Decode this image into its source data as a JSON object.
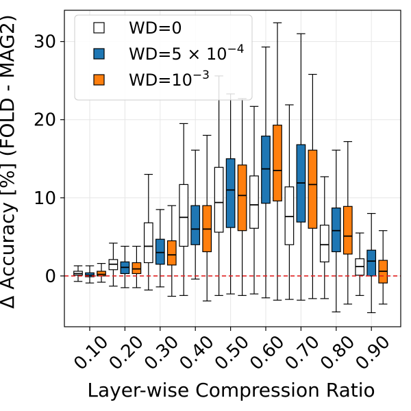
{
  "chart_data": {
    "type": "boxplot",
    "title": "",
    "xlabel": "Layer-wise Compression Ratio",
    "ylabel": "Δ Accuracy [%] (FOLD - MAG2)",
    "ylim": [
      -6.5,
      34
    ],
    "yticks": [
      0,
      10,
      20,
      30
    ],
    "grid": true,
    "reference_line": {
      "y": 0,
      "color": "#e02020",
      "style": "dashed"
    },
    "legend_position": "top-left",
    "categories": [
      "0.10",
      "0.20",
      "0.30",
      "0.40",
      "0.50",
      "0.60",
      "0.70",
      "0.80",
      "0.90"
    ],
    "series": [
      {
        "name": "WD=0",
        "legend_main": "WD=0",
        "legend_sup": "",
        "color": "#ffffff",
        "boxes": [
          {
            "whislo": -0.7,
            "q1": 0.1,
            "med": 0.3,
            "q3": 0.6,
            "whishi": 1.3
          },
          {
            "whislo": -1.3,
            "q1": 0.8,
            "med": 1.5,
            "q3": 2.1,
            "whishi": 4.2
          },
          {
            "whislo": -1.8,
            "q1": 1.7,
            "med": 3.8,
            "q3": 6.8,
            "whishi": 13.0
          },
          {
            "whislo": -2.5,
            "q1": 3.8,
            "med": 7.5,
            "q3": 11.7,
            "whishi": 19.5
          },
          {
            "whislo": -2.5,
            "q1": 5.6,
            "med": 9.4,
            "q3": 13.9,
            "whishi": 25.6
          },
          {
            "whislo": -2.3,
            "q1": 6.1,
            "med": 9.1,
            "q3": 12.8,
            "whishi": 21.7
          },
          {
            "whislo": -3.0,
            "q1": 4.0,
            "med": 7.6,
            "q3": 11.4,
            "whishi": 21.9
          },
          {
            "whislo": -2.9,
            "q1": 1.8,
            "med": 4.0,
            "q3": 6.5,
            "whishi": 12.7
          },
          {
            "whislo": -2.5,
            "q1": 0.1,
            "med": 1.2,
            "q3": 2.2,
            "whishi": 5.5
          }
        ]
      },
      {
        "name": "WD=5×10^-4",
        "legend_main": "WD=5 × 10",
        "legend_sup": "−4",
        "color": "#1f77b4",
        "boxes": [
          {
            "whislo": -0.9,
            "q1": -0.1,
            "med": 0.1,
            "q3": 0.4,
            "whishi": 1.3
          },
          {
            "whislo": -1.5,
            "q1": 0.3,
            "med": 1.1,
            "q3": 1.8,
            "whishi": 3.8
          },
          {
            "whislo": -1.4,
            "q1": 1.5,
            "med": 3.0,
            "q3": 4.7,
            "whishi": 8.5
          },
          {
            "whislo": -0.4,
            "q1": 4.0,
            "med": 6.0,
            "q3": 9.0,
            "whishi": 16.1
          },
          {
            "whislo": -2.3,
            "q1": 6.2,
            "med": 11.0,
            "q3": 15.0,
            "whishi": 23.3
          },
          {
            "whislo": -2.8,
            "q1": 9.3,
            "med": 13.7,
            "q3": 17.9,
            "whishi": 29.3
          },
          {
            "whislo": -3.1,
            "q1": 6.9,
            "med": 11.9,
            "q3": 16.8,
            "whishi": 31.0
          },
          {
            "whislo": -4.6,
            "q1": 3.1,
            "med": 5.8,
            "q3": 8.7,
            "whishi": 16.1
          },
          {
            "whislo": -4.7,
            "q1": 0.0,
            "med": 1.9,
            "q3": 3.3,
            "whishi": 8.0
          }
        ]
      },
      {
        "name": "WD=10^-3",
        "legend_main": "WD=10",
        "legend_sup": "−3",
        "color": "#ff7f0e",
        "boxes": [
          {
            "whislo": -0.8,
            "q1": 0.0,
            "med": 0.2,
            "q3": 0.6,
            "whishi": 1.6
          },
          {
            "whislo": -1.5,
            "q1": 0.3,
            "med": 0.9,
            "q3": 1.7,
            "whishi": 3.8
          },
          {
            "whislo": -2.6,
            "q1": 1.4,
            "med": 2.7,
            "q3": 4.5,
            "whishi": 9.0
          },
          {
            "whislo": -3.2,
            "q1": 3.1,
            "med": 6.0,
            "q3": 9.0,
            "whishi": 18.0
          },
          {
            "whislo": -2.5,
            "q1": 5.8,
            "med": 10.3,
            "q3": 14.2,
            "whishi": 22.7
          },
          {
            "whislo": -3.1,
            "q1": 9.6,
            "med": 13.5,
            "q3": 19.3,
            "whishi": 32.4
          },
          {
            "whislo": -2.9,
            "q1": 6.1,
            "med": 11.7,
            "q3": 16.1,
            "whishi": 25.8
          },
          {
            "whislo": -3.6,
            "q1": 2.8,
            "med": 5.1,
            "q3": 8.9,
            "whishi": 17.2
          },
          {
            "whislo": -3.6,
            "q1": -0.9,
            "med": 0.6,
            "q3": 2.0,
            "whishi": 5.8
          }
        ]
      }
    ]
  }
}
